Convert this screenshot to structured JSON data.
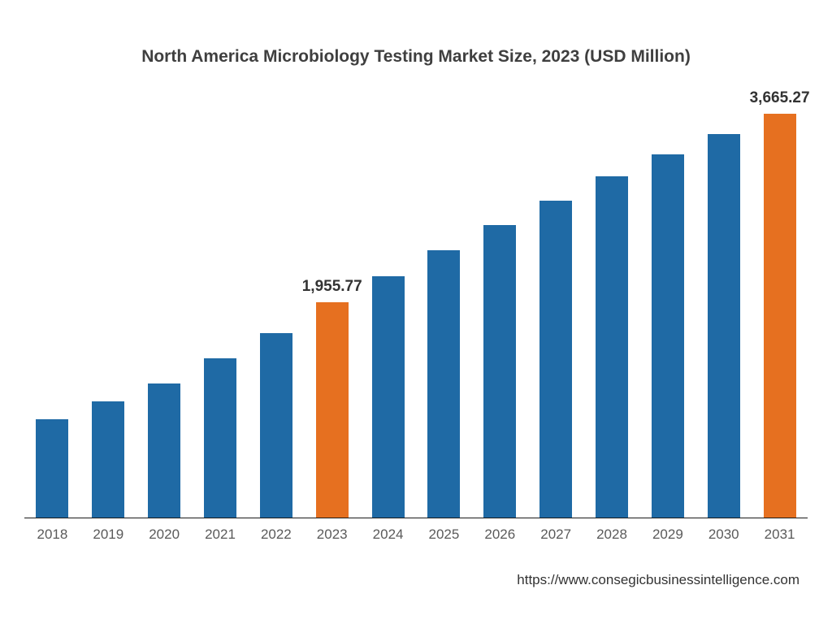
{
  "chart": {
    "type": "bar",
    "title": "North America Microbiology Testing Market Size, 2023 (USD Million)",
    "title_fontsize": 21,
    "title_color": "#3f3f3f",
    "background_color": "#ffffff",
    "baseline_color": "#1a1a1a",
    "axis_label_color": "#5a5a5a",
    "axis_label_fontsize": 17,
    "value_label_fontsize": 19,
    "value_label_color": "#333333",
    "bar_width_pct": 58,
    "ylim_max": 3665.27,
    "unit": "USD Million",
    "primary_color": "#1f6aa5",
    "highlight_color": "#e67020",
    "categories": [
      "2018",
      "2019",
      "2020",
      "2021",
      "2022",
      "2023",
      "2024",
      "2025",
      "2026",
      "2027",
      "2028",
      "2029",
      "2030",
      "2031"
    ],
    "values": [
      900,
      1060,
      1220,
      1450,
      1680,
      1955.77,
      2190,
      2430,
      2660,
      2880,
      3100,
      3300,
      3480,
      3665.27
    ],
    "bar_colors": [
      "#1f6aa5",
      "#1f6aa5",
      "#1f6aa5",
      "#1f6aa5",
      "#1f6aa5",
      "#e67020",
      "#1f6aa5",
      "#1f6aa5",
      "#1f6aa5",
      "#1f6aa5",
      "#1f6aa5",
      "#1f6aa5",
      "#1f6aa5",
      "#e67020"
    ],
    "value_labels": {
      "5": "1,955.77",
      "13": "3,665.27"
    },
    "source_url": "https://www.consegicbusinessintelligence.com"
  }
}
